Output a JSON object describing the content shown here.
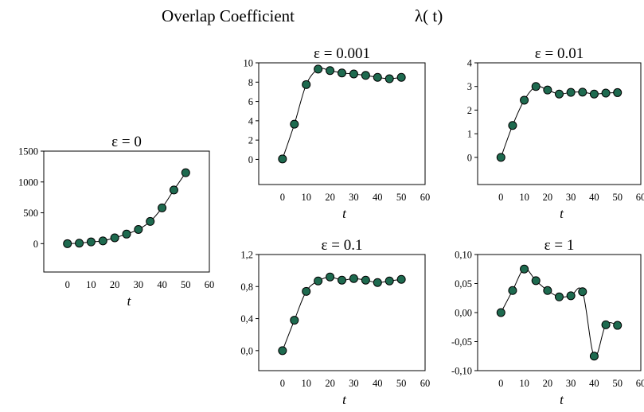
{
  "figure": {
    "title": "Overlap Coefficient",
    "title_symbol": "λ( t)"
  },
  "chart_data": [
    {
      "type": "line",
      "title": "ε = 0",
      "xlabel": "t",
      "ylabel": "",
      "xlim": [
        -10,
        60
      ],
      "ylim": [
        -460,
        1500
      ],
      "xticks": [
        "0",
        "10",
        "20",
        "30",
        "40",
        "50",
        "60"
      ],
      "yticks": [
        "0",
        "500",
        "1000",
        "1500"
      ],
      "x": [
        0,
        5,
        10,
        15,
        20,
        25,
        30,
        35,
        40,
        45,
        50
      ],
      "series": [
        {
          "values": [
            0,
            8,
            28,
            45,
            95,
            155,
            230,
            360,
            580,
            870,
            1150
          ]
        }
      ],
      "marker_color": "#1e6a4f",
      "grid": false
    },
    {
      "type": "line",
      "title": "ε = 0.001",
      "xlabel": "t",
      "ylabel": "",
      "xlim": [
        -10,
        60
      ],
      "ylim": [
        -2.6,
        10
      ],
      "xticks": [
        "0",
        "10",
        "20",
        "30",
        "40",
        "50",
        "60"
      ],
      "yticks": [
        "0",
        "2",
        "4",
        "6",
        "8",
        "10"
      ],
      "x": [
        0,
        5,
        10,
        15,
        20,
        25,
        30,
        35,
        40,
        45,
        50
      ],
      "series": [
        {
          "values": [
            0.05,
            3.65,
            7.75,
            9.35,
            9.2,
            8.95,
            8.85,
            8.7,
            8.5,
            8.35,
            8.5
          ]
        }
      ],
      "marker_color": "#1e6a4f",
      "grid": false
    },
    {
      "type": "line",
      "title": "ε = 0.01",
      "xlabel": "t",
      "ylabel": "",
      "xlim": [
        -10,
        60
      ],
      "ylim": [
        -1.15,
        4
      ],
      "xticks": [
        "0",
        "10",
        "20",
        "30",
        "40",
        "50",
        "60"
      ],
      "yticks": [
        "0",
        "1",
        "2",
        "3",
        "4"
      ],
      "x": [
        0,
        5,
        10,
        15,
        20,
        25,
        30,
        35,
        40,
        45,
        50
      ],
      "series": [
        {
          "values": [
            0,
            1.35,
            2.42,
            3.0,
            2.85,
            2.68,
            2.75,
            2.76,
            2.68,
            2.72,
            2.74
          ]
        }
      ],
      "marker_color": "#1e6a4f",
      "grid": false
    },
    {
      "type": "line",
      "title": "ε = 0.1",
      "xlabel": "t",
      "ylabel": "",
      "xlim": [
        -10,
        60
      ],
      "ylim": [
        -0.25,
        1.2
      ],
      "xticks": [
        "0",
        "10",
        "20",
        "30",
        "40",
        "50",
        "60"
      ],
      "yticks": [
        "0,0",
        "0,4",
        "0,8",
        "1,2"
      ],
      "x": [
        0,
        5,
        10,
        15,
        20,
        25,
        30,
        35,
        40,
        45,
        50
      ],
      "series": [
        {
          "values": [
            0.0,
            0.38,
            0.74,
            0.87,
            0.92,
            0.88,
            0.9,
            0.88,
            0.85,
            0.87,
            0.89
          ]
        }
      ],
      "marker_color": "#1e6a4f",
      "grid": false
    },
    {
      "type": "line",
      "title": "ε = 1",
      "xlabel": "t",
      "ylabel": "",
      "xlim": [
        -10,
        60
      ],
      "ylim": [
        -0.1,
        0.1
      ],
      "xticks": [
        "0",
        "10",
        "20",
        "30",
        "40",
        "50",
        "60"
      ],
      "yticks": [
        "-0,10",
        "-0,05",
        "0,00",
        "0,05",
        "0,10"
      ],
      "x": [
        0,
        5,
        10,
        15,
        20,
        25,
        30,
        35,
        40,
        45,
        50
      ],
      "series": [
        {
          "values": [
            0.0,
            0.038,
            0.075,
            0.055,
            0.038,
            0.027,
            0.029,
            0.036,
            -0.075,
            -0.021,
            -0.022
          ]
        }
      ],
      "marker_color": "#1e6a4f",
      "grid": false
    }
  ]
}
